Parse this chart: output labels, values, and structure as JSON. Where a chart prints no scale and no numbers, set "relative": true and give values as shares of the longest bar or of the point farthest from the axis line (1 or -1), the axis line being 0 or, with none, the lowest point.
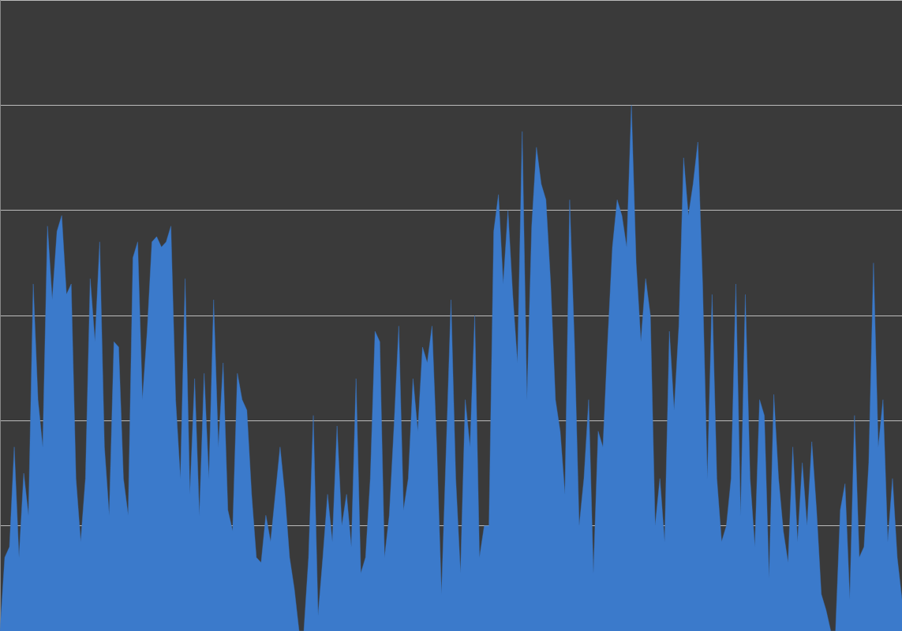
{
  "chart_data": {
    "type": "area",
    "relative": true,
    "grid": "y",
    "legend": false,
    "marker": "none",
    "categories": [
      null,
      null,
      null,
      null,
      null,
      null,
      null,
      null,
      null,
      null,
      null,
      null,
      null,
      null,
      null,
      null,
      null,
      null,
      null,
      null,
      null,
      null,
      null,
      null,
      null,
      null,
      null,
      null,
      null,
      null,
      null,
      null,
      null,
      null,
      null,
      null,
      null,
      null,
      null,
      null,
      null,
      null,
      null,
      null,
      null,
      null,
      null,
      null,
      null,
      null,
      null,
      null,
      null,
      null,
      null,
      null,
      null,
      null,
      null,
      null,
      null,
      null,
      null,
      null,
      null,
      null,
      null,
      null,
      null,
      null,
      null,
      null,
      null,
      null,
      null,
      null,
      null,
      null,
      null,
      null,
      null,
      null,
      null,
      null,
      null,
      null,
      null,
      null,
      null,
      null,
      null,
      null,
      null,
      null,
      null,
      null,
      null,
      null,
      null,
      null,
      null,
      null,
      null,
      null,
      null,
      null,
      null,
      null,
      null,
      null,
      null,
      null,
      null,
      null,
      null,
      null,
      null,
      null,
      null,
      null,
      null,
      null,
      null,
      null,
      null,
      null,
      null,
      null,
      null,
      null,
      null,
      null,
      null,
      null,
      null,
      null,
      null,
      null,
      null,
      null,
      null,
      null,
      null,
      null,
      null,
      null,
      null,
      null,
      null,
      null,
      null,
      null,
      null,
      null,
      null,
      null,
      null,
      null,
      null,
      null,
      null,
      null,
      null,
      null,
      null,
      null,
      null,
      null,
      null,
      null,
      null,
      null,
      null,
      null,
      null,
      null,
      null,
      null,
      null,
      null,
      null,
      null,
      null,
      null,
      null,
      null,
      null,
      null,
      null,
      null,
      null
    ],
    "series": [
      {
        "color": "#3b7acb",
        "values": [
          0,
          0.14,
          0.16,
          0.35,
          0.14,
          0.3,
          0.22,
          0.66,
          0.44,
          0.35,
          0.77,
          0.63,
          0.76,
          0.79,
          0.64,
          0.66,
          0.29,
          0.17,
          0.29,
          0.67,
          0.55,
          0.74,
          0.35,
          0.22,
          0.55,
          0.54,
          0.29,
          0.22,
          0.71,
          0.74,
          0.44,
          0.57,
          0.74,
          0.75,
          0.73,
          0.74,
          0.77,
          0.44,
          0.29,
          0.67,
          0.26,
          0.48,
          0.22,
          0.49,
          0.29,
          0.63,
          0.35,
          0.51,
          0.23,
          0.19,
          0.49,
          0.44,
          0.42,
          0.26,
          0.14,
          0.13,
          0.22,
          0.17,
          0.26,
          0.35,
          0.26,
          0.14,
          0.08,
          0,
          0,
          0.14,
          0.41,
          0.03,
          0.14,
          0.26,
          0.17,
          0.39,
          0.2,
          0.26,
          0.16,
          0.48,
          0.11,
          0.14,
          0.29,
          0.57,
          0.55,
          0.14,
          0.22,
          0.39,
          0.58,
          0.23,
          0.29,
          0.48,
          0.38,
          0.54,
          0.51,
          0.58,
          0.35,
          0.07,
          0.35,
          0.63,
          0.29,
          0.11,
          0.44,
          0.35,
          0.6,
          0.14,
          0.2,
          0.2,
          0.76,
          0.83,
          0.66,
          0.8,
          0.64,
          0.51,
          0.95,
          0.44,
          0.77,
          0.92,
          0.85,
          0.82,
          0.66,
          0.44,
          0.38,
          0.26,
          0.82,
          0.55,
          0.2,
          0.29,
          0.44,
          0.11,
          0.38,
          0.35,
          0.55,
          0.73,
          0.82,
          0.79,
          0.73,
          1.0,
          0.7,
          0.55,
          0.67,
          0.6,
          0.2,
          0.29,
          0.17,
          0.57,
          0.42,
          0.58,
          0.9,
          0.79,
          0.85,
          0.93,
          0.66,
          0.29,
          0.64,
          0.29,
          0.17,
          0.2,
          0.29,
          0.66,
          0.22,
          0.64,
          0.29,
          0.16,
          0.44,
          0.41,
          0.1,
          0.45,
          0.29,
          0.19,
          0.13,
          0.35,
          0.17,
          0.32,
          0.2,
          0.36,
          0.23,
          0.07,
          0.04,
          0,
          0,
          0.23,
          0.28,
          0.06,
          0.41,
          0.14,
          0.16,
          0.32,
          0.7,
          0.35,
          0.44,
          0.17,
          0.29,
          0.14,
          0.06
        ]
      }
    ]
  }
}
